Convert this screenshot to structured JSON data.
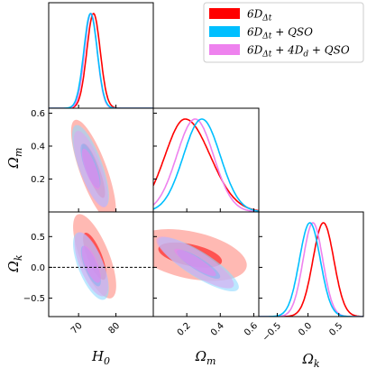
{
  "chart_data": {
    "type": "corner",
    "parameters": [
      {
        "symbol": "H0",
        "label_main": "H",
        "label_sub": "0",
        "ticks": [
          "70",
          "80"
        ],
        "range": [
          62,
          90
        ]
      },
      {
        "symbol": "Ωm",
        "label_main": "Ω",
        "label_sub": "m",
        "ticks": [
          "0.2",
          "0.4",
          "0.6"
        ],
        "range": [
          0.0,
          0.63
        ]
      },
      {
        "symbol": "Ωk",
        "label_main": "Ω",
        "label_sub": "k",
        "ticks": [
          "−0.5",
          "0.0",
          "0.5"
        ],
        "range": [
          -0.8,
          0.9
        ]
      }
    ],
    "y_ticks": {
      "Om": [
        "0.2",
        "0.4",
        "0.6"
      ],
      "Ok": [
        "−0.5",
        "0.0",
        "0.5"
      ]
    },
    "series": [
      {
        "name_main": "6D",
        "name_sub": "Δt",
        "name_rest": "",
        "color": "#ff0000",
        "fill": "#ff8a80",
        "H0": {
          "mean": 74.0,
          "sigma": 1.8
        },
        "Om": {
          "mode": 0.19,
          "sigma_lo": 0.12,
          "sigma_hi": 0.15
        },
        "Ok": {
          "mean": 0.25,
          "sigma": 0.17
        }
      },
      {
        "name_main": "6D",
        "name_sub": "Δt",
        "name_rest": " + QSO",
        "color": "#00bfff",
        "fill": "#8fd9ff",
        "H0": {
          "mean": 73.2,
          "sigma": 1.8
        },
        "Om": {
          "mode": 0.29,
          "sigma_lo": 0.11,
          "sigma_hi": 0.11
        },
        "Ok": {
          "mean": 0.03,
          "sigma": 0.17
        }
      },
      {
        "name_main": "6D",
        "name_sub": "Δt",
        "name_rest": " + 4D",
        "name_sub2": "d",
        "name_rest2": " + QSO",
        "color": "#ee82ee",
        "fill": "#d9a6ef",
        "H0": {
          "mean": 73.3,
          "sigma": 1.7
        },
        "Om": {
          "mode": 0.25,
          "sigma_lo": 0.11,
          "sigma_hi": 0.11
        },
        "Ok": {
          "mean": 0.08,
          "sigma": 0.16
        }
      }
    ],
    "reference_lines": [
      {
        "panel": "Ok-vs-H0",
        "axis": "y",
        "value": 0.0,
        "style": "dashed"
      }
    ],
    "legend_position": "top-right"
  }
}
